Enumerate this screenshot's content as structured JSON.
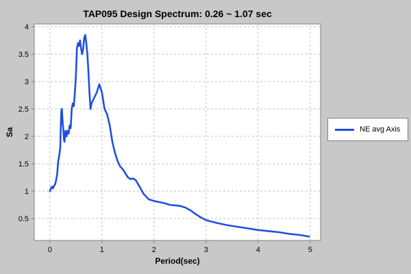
{
  "chart_data": {
    "type": "line",
    "title": "TAP095 Design Spectrum: 0.26 ~ 1.07 sec",
    "xlabel": "Period(sec)",
    "ylabel": "Sa",
    "xlim": [
      -0.3,
      5.2
    ],
    "ylim": [
      0.1,
      4.05
    ],
    "x_ticks": [
      "0",
      "1",
      "2",
      "3",
      "4",
      "5"
    ],
    "y_ticks": [
      "0.5",
      "1",
      "1.5",
      "2",
      "2.5",
      "3",
      "3.5",
      "4"
    ],
    "grid": true,
    "legend_position": "right",
    "series": [
      {
        "name": "NE avg Axis",
        "color": "#1f4fe0",
        "x": [
          0.0,
          0.02,
          0.04,
          0.06,
          0.08,
          0.1,
          0.12,
          0.14,
          0.16,
          0.18,
          0.2,
          0.21,
          0.22,
          0.23,
          0.24,
          0.25,
          0.26,
          0.27,
          0.28,
          0.3,
          0.32,
          0.34,
          0.36,
          0.38,
          0.4,
          0.42,
          0.44,
          0.46,
          0.48,
          0.5,
          0.52,
          0.54,
          0.56,
          0.58,
          0.6,
          0.62,
          0.64,
          0.66,
          0.68,
          0.7,
          0.72,
          0.74,
          0.76,
          0.78,
          0.8,
          0.85,
          0.9,
          0.95,
          1.0,
          1.05,
          1.1,
          1.15,
          1.2,
          1.25,
          1.3,
          1.35,
          1.4,
          1.5,
          1.55,
          1.6,
          1.65,
          1.7,
          1.8,
          1.9,
          2.0,
          2.1,
          2.2,
          2.3,
          2.4,
          2.5,
          2.6,
          2.7,
          2.8,
          2.9,
          3.0,
          3.2,
          3.4,
          3.6,
          3.8,
          4.0,
          4.2,
          4.4,
          4.6,
          4.8,
          4.98
        ],
        "values": [
          1.0,
          1.05,
          1.08,
          1.05,
          1.1,
          1.12,
          1.2,
          1.3,
          1.55,
          1.65,
          1.8,
          2.2,
          2.45,
          2.5,
          2.35,
          2.2,
          2.1,
          1.95,
          1.9,
          2.1,
          2.0,
          2.1,
          2.05,
          2.2,
          2.15,
          2.5,
          2.6,
          2.55,
          2.8,
          3.1,
          3.6,
          3.7,
          3.65,
          3.75,
          3.6,
          3.5,
          3.6,
          3.8,
          3.85,
          3.7,
          3.5,
          3.2,
          2.8,
          2.5,
          2.6,
          2.7,
          2.8,
          2.95,
          2.8,
          2.5,
          2.4,
          2.2,
          1.9,
          1.7,
          1.55,
          1.45,
          1.4,
          1.25,
          1.22,
          1.23,
          1.2,
          1.12,
          0.95,
          0.85,
          0.82,
          0.8,
          0.78,
          0.75,
          0.74,
          0.73,
          0.7,
          0.65,
          0.58,
          0.52,
          0.47,
          0.42,
          0.38,
          0.35,
          0.32,
          0.29,
          0.27,
          0.25,
          0.22,
          0.2,
          0.17
        ]
      }
    ]
  }
}
